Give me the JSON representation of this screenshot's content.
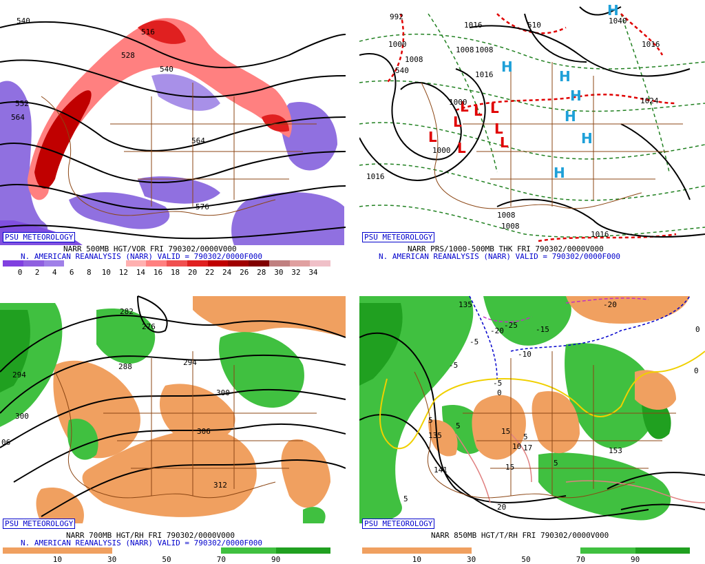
{
  "panels": [
    {
      "badge": "PSU METEOROLOGY",
      "title_line": "NARR 500MB HGT/VOR FRI 790302/0000V000",
      "valid_line": "N. AMERICAN REANALYSIS (NARR) VALID = 790302/0000F000",
      "colorbar": {
        "colors": [
          "#8040e0",
          "#9060e0",
          "#a080e8",
          "#ffffff",
          "#ffffff",
          "#ffffff",
          "#ffb0b0",
          "#ff8080",
          "#f05050",
          "#e02020",
          "#c00000",
          "#a00000",
          "#800000",
          "#c08080",
          "#e0a0a0",
          "#f0c0c8"
        ],
        "ticks": [
          "0",
          "2",
          "4",
          "6",
          "8",
          "10",
          "12",
          "14",
          "16",
          "18",
          "20",
          "22",
          "24",
          "26",
          "28",
          "30",
          "32",
          "34"
        ]
      },
      "contour_labels": [
        "540",
        "516",
        "528",
        "540",
        "552",
        "564",
        "564",
        "576"
      ]
    },
    {
      "badge": "PSU METEOROLOGY",
      "title_line": "NARR PRS/1000-500MB THK FRI 790302/0000V000",
      "valid_line": "N. AMERICAN REANALYSIS (NARR) VALID = 790302/0000F000",
      "contour_labels": [
        "992",
        "1016",
        "510",
        "1040",
        "1000",
        "1008",
        "1008",
        "1008",
        "1016",
        "540",
        "1024",
        "1016",
        "1008",
        "1008",
        "1016",
        "1016",
        "1000",
        "1000"
      ],
      "highs_label": "H",
      "lows_label": "L"
    },
    {
      "badge": "PSU METEOROLOGY",
      "title_line": "NARR 700MB HGT/RH FRI 790302/0000V000",
      "valid_line": "N. AMERICAN REANALYSIS (NARR) VALID = 790302/0000F000",
      "colorbar": {
        "colors": [
          "#f0a060",
          "#f0a060",
          "#ffffff",
          "#ffffff",
          "#40c040",
          "#20a020"
        ],
        "ticks": [
          "10",
          "30",
          "50",
          "70",
          "90"
        ]
      },
      "contour_labels": [
        "282",
        "276",
        "288",
        "294",
        "294",
        "300",
        "300",
        "306",
        "312",
        "06"
      ]
    },
    {
      "badge": "PSU METEOROLOGY",
      "title_line": "NARR 850MB HGT/T/RH FRI 790302/0000V000",
      "colorbar": {
        "colors": [
          "#f0a060",
          "#f0a060",
          "#ffffff",
          "#ffffff",
          "#40c040",
          "#20a020"
        ],
        "ticks": [
          "10",
          "30",
          "50",
          "70",
          "90"
        ]
      },
      "contour_labels": [
        "135",
        "-25",
        "-15",
        "-20",
        "-20",
        "-5",
        "-10",
        "-5",
        "-5",
        "0",
        "0",
        "0",
        "5",
        "5",
        "15",
        "10",
        "15",
        "5",
        "17",
        "135",
        "153",
        "5",
        "20",
        "5",
        "141"
      ]
    }
  ]
}
